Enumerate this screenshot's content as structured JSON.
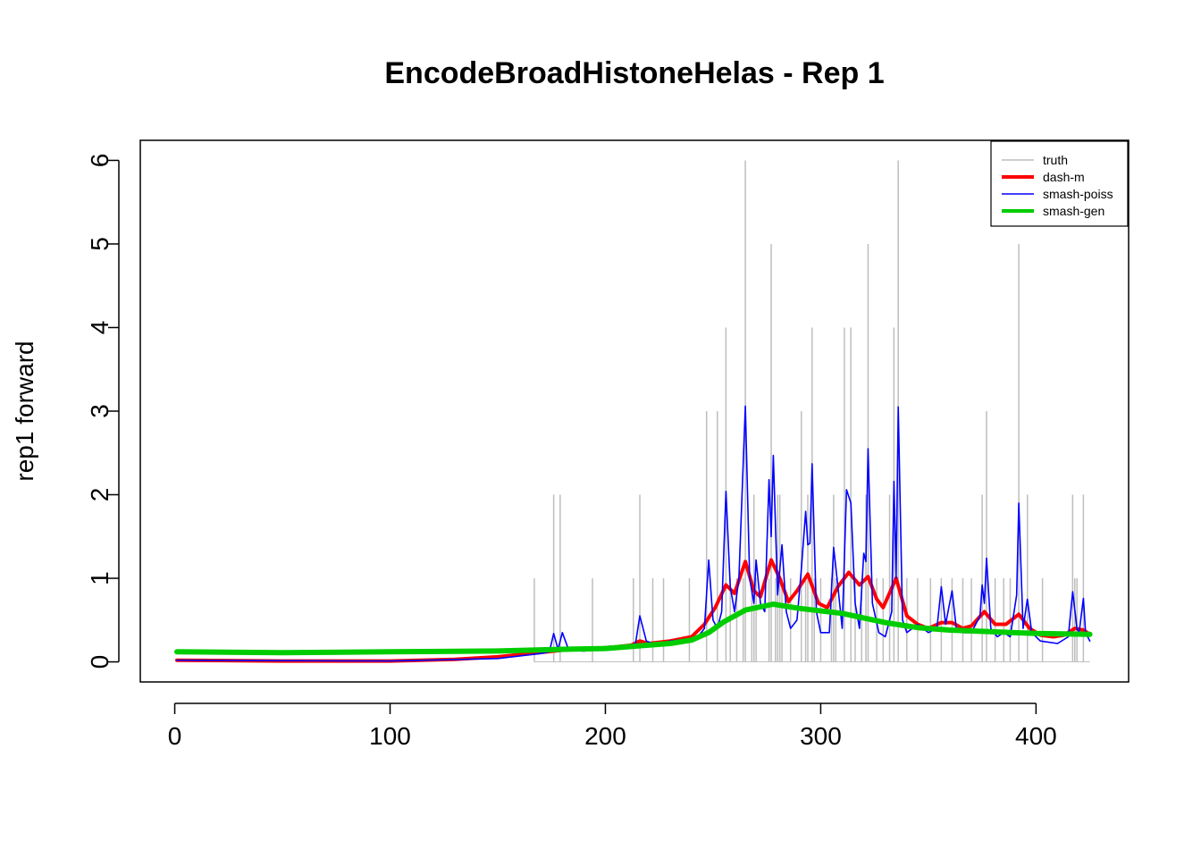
{
  "chart_data": {
    "type": "line",
    "title": "EncodeBroadHistoneHelas - Rep 1",
    "xlabel": "",
    "ylabel": "rep1 forward",
    "xlim": [
      -16,
      443
    ],
    "ylim": [
      -0.24,
      6.24
    ],
    "x_ticks": [
      0,
      100,
      200,
      300,
      400
    ],
    "y_ticks": [
      0,
      1,
      2,
      3,
      4,
      5,
      6
    ],
    "legend_position": "top-right",
    "grid": false,
    "series": [
      {
        "name": "truth",
        "style": "spikes",
        "color": "#bebebe",
        "line_width": 1.5,
        "points": [
          [
            167,
            1
          ],
          [
            176,
            2
          ],
          [
            179,
            2
          ],
          [
            194,
            1
          ],
          [
            213,
            1
          ],
          [
            216,
            2
          ],
          [
            222,
            1
          ],
          [
            227,
            1
          ],
          [
            239,
            1
          ],
          [
            247,
            3
          ],
          [
            252,
            3
          ],
          [
            256,
            4
          ],
          [
            258,
            1
          ],
          [
            261,
            1
          ],
          [
            264,
            1
          ],
          [
            265,
            6
          ],
          [
            268,
            1
          ],
          [
            269,
            2
          ],
          [
            270,
            1
          ],
          [
            276,
            1
          ],
          [
            277,
            5
          ],
          [
            279,
            1
          ],
          [
            280,
            2
          ],
          [
            281,
            2
          ],
          [
            282,
            1
          ],
          [
            286,
            1
          ],
          [
            291,
            3
          ],
          [
            293,
            1
          ],
          [
            294,
            2
          ],
          [
            296,
            4
          ],
          [
            297,
            1
          ],
          [
            300,
            1
          ],
          [
            305,
            1
          ],
          [
            306,
            2
          ],
          [
            307,
            1
          ],
          [
            311,
            4
          ],
          [
            314,
            4
          ],
          [
            316,
            1
          ],
          [
            319,
            1
          ],
          [
            321,
            2
          ],
          [
            322,
            5
          ],
          [
            326,
            1
          ],
          [
            329,
            1
          ],
          [
            332,
            2
          ],
          [
            334,
            4
          ],
          [
            336,
            6
          ],
          [
            340,
            1
          ],
          [
            345,
            1
          ],
          [
            351,
            1
          ],
          [
            356,
            1
          ],
          [
            361,
            1
          ],
          [
            366,
            1
          ],
          [
            370,
            1
          ],
          [
            375,
            2
          ],
          [
            377,
            3
          ],
          [
            381,
            1
          ],
          [
            385,
            1
          ],
          [
            388,
            1
          ],
          [
            392,
            5
          ],
          [
            396,
            2
          ],
          [
            403,
            1
          ],
          [
            417,
            2
          ],
          [
            418,
            1
          ],
          [
            419,
            1
          ],
          [
            422,
            2
          ]
        ]
      },
      {
        "name": "dash-m",
        "style": "line",
        "color": "#ff0000",
        "line_width": 4,
        "points": [
          [
            1,
            0.02
          ],
          [
            50,
            0.01
          ],
          [
            100,
            0.01
          ],
          [
            130,
            0.03
          ],
          [
            150,
            0.06
          ],
          [
            165,
            0.1
          ],
          [
            180,
            0.14
          ],
          [
            195,
            0.16
          ],
          [
            205,
            0.18
          ],
          [
            212,
            0.2
          ],
          [
            216,
            0.25
          ],
          [
            220,
            0.22
          ],
          [
            230,
            0.25
          ],
          [
            240,
            0.3
          ],
          [
            246,
            0.45
          ],
          [
            251,
            0.65
          ],
          [
            256,
            0.92
          ],
          [
            260,
            0.82
          ],
          [
            265,
            1.2
          ],
          [
            269,
            0.85
          ],
          [
            272,
            0.78
          ],
          [
            277,
            1.22
          ],
          [
            281,
            1.0
          ],
          [
            285,
            0.72
          ],
          [
            289,
            0.85
          ],
          [
            294,
            1.05
          ],
          [
            299,
            0.7
          ],
          [
            303,
            0.65
          ],
          [
            308,
            0.9
          ],
          [
            313,
            1.07
          ],
          [
            318,
            0.92
          ],
          [
            322,
            1.02
          ],
          [
            326,
            0.75
          ],
          [
            329,
            0.65
          ],
          [
            335,
            1.0
          ],
          [
            340,
            0.55
          ],
          [
            345,
            0.45
          ],
          [
            350,
            0.4
          ],
          [
            356,
            0.47
          ],
          [
            361,
            0.47
          ],
          [
            366,
            0.4
          ],
          [
            370,
            0.43
          ],
          [
            376,
            0.6
          ],
          [
            381,
            0.45
          ],
          [
            386,
            0.45
          ],
          [
            392,
            0.57
          ],
          [
            397,
            0.4
          ],
          [
            402,
            0.32
          ],
          [
            408,
            0.3
          ],
          [
            413,
            0.32
          ],
          [
            418,
            0.4
          ],
          [
            422,
            0.38
          ],
          [
            425,
            0.33
          ]
        ]
      },
      {
        "name": "smash-poiss",
        "style": "line",
        "color": "#0000ff",
        "line_width": 1.6,
        "points": [
          [
            1,
            0.02
          ],
          [
            100,
            0.01
          ],
          [
            150,
            0.04
          ],
          [
            170,
            0.1
          ],
          [
            174,
            0.12
          ],
          [
            176,
            0.34
          ],
          [
            178,
            0.15
          ],
          [
            180,
            0.35
          ],
          [
            183,
            0.14
          ],
          [
            190,
            0.13
          ],
          [
            200,
            0.15
          ],
          [
            210,
            0.18
          ],
          [
            214,
            0.22
          ],
          [
            216,
            0.55
          ],
          [
            219,
            0.25
          ],
          [
            222,
            0.22
          ],
          [
            226,
            0.22
          ],
          [
            230,
            0.25
          ],
          [
            238,
            0.27
          ],
          [
            243,
            0.3
          ],
          [
            246,
            0.4
          ],
          [
            248,
            1.22
          ],
          [
            250,
            0.5
          ],
          [
            252,
            0.4
          ],
          [
            254,
            0.6
          ],
          [
            256,
            2.04
          ],
          [
            258,
            0.9
          ],
          [
            260,
            0.6
          ],
          [
            262,
            1.0
          ],
          [
            265,
            3.06
          ],
          [
            267,
            1.0
          ],
          [
            269,
            0.7
          ],
          [
            270,
            1.22
          ],
          [
            272,
            0.7
          ],
          [
            274,
            0.6
          ],
          [
            276,
            2.18
          ],
          [
            277,
            1.5
          ],
          [
            278,
            2.47
          ],
          [
            280,
            0.8
          ],
          [
            282,
            1.4
          ],
          [
            284,
            0.6
          ],
          [
            286,
            0.4
          ],
          [
            289,
            0.5
          ],
          [
            291,
            1.1
          ],
          [
            293,
            1.8
          ],
          [
            294,
            1.4
          ],
          [
            295,
            1.42
          ],
          [
            296,
            2.37
          ],
          [
            298,
            0.6
          ],
          [
            300,
            0.35
          ],
          [
            304,
            0.35
          ],
          [
            306,
            1.37
          ],
          [
            308,
            0.9
          ],
          [
            310,
            0.4
          ],
          [
            312,
            2.06
          ],
          [
            314,
            1.9
          ],
          [
            316,
            0.7
          ],
          [
            318,
            0.4
          ],
          [
            320,
            1.3
          ],
          [
            321,
            1.2
          ],
          [
            322,
            2.55
          ],
          [
            324,
            0.7
          ],
          [
            327,
            0.35
          ],
          [
            330,
            0.3
          ],
          [
            333,
            0.6
          ],
          [
            334,
            2.16
          ],
          [
            335,
            1.0
          ],
          [
            336,
            3.05
          ],
          [
            338,
            0.5
          ],
          [
            340,
            0.35
          ],
          [
            345,
            0.45
          ],
          [
            350,
            0.35
          ],
          [
            354,
            0.4
          ],
          [
            356,
            0.9
          ],
          [
            358,
            0.45
          ],
          [
            361,
            0.85
          ],
          [
            363,
            0.4
          ],
          [
            366,
            0.35
          ],
          [
            370,
            0.35
          ],
          [
            374,
            0.55
          ],
          [
            375,
            0.92
          ],
          [
            376,
            0.7
          ],
          [
            377,
            1.24
          ],
          [
            379,
            0.4
          ],
          [
            382,
            0.3
          ],
          [
            385,
            0.35
          ],
          [
            388,
            0.3
          ],
          [
            391,
            0.8
          ],
          [
            392,
            1.9
          ],
          [
            394,
            0.4
          ],
          [
            396,
            0.75
          ],
          [
            398,
            0.35
          ],
          [
            402,
            0.25
          ],
          [
            410,
            0.22
          ],
          [
            415,
            0.3
          ],
          [
            417,
            0.84
          ],
          [
            419,
            0.4
          ],
          [
            420,
            0.35
          ],
          [
            422,
            0.76
          ],
          [
            423,
            0.35
          ],
          [
            425,
            0.25
          ]
        ]
      },
      {
        "name": "smash-gen",
        "style": "line",
        "color": "#00cd00",
        "line_width": 6,
        "points": [
          [
            1,
            0.12
          ],
          [
            50,
            0.11
          ],
          [
            100,
            0.12
          ],
          [
            150,
            0.13
          ],
          [
            180,
            0.15
          ],
          [
            200,
            0.16
          ],
          [
            215,
            0.19
          ],
          [
            230,
            0.22
          ],
          [
            240,
            0.26
          ],
          [
            248,
            0.35
          ],
          [
            255,
            0.48
          ],
          [
            265,
            0.62
          ],
          [
            278,
            0.69
          ],
          [
            290,
            0.64
          ],
          [
            310,
            0.58
          ],
          [
            330,
            0.47
          ],
          [
            345,
            0.41
          ],
          [
            360,
            0.38
          ],
          [
            380,
            0.36
          ],
          [
            400,
            0.34
          ],
          [
            425,
            0.33
          ]
        ]
      }
    ]
  }
}
